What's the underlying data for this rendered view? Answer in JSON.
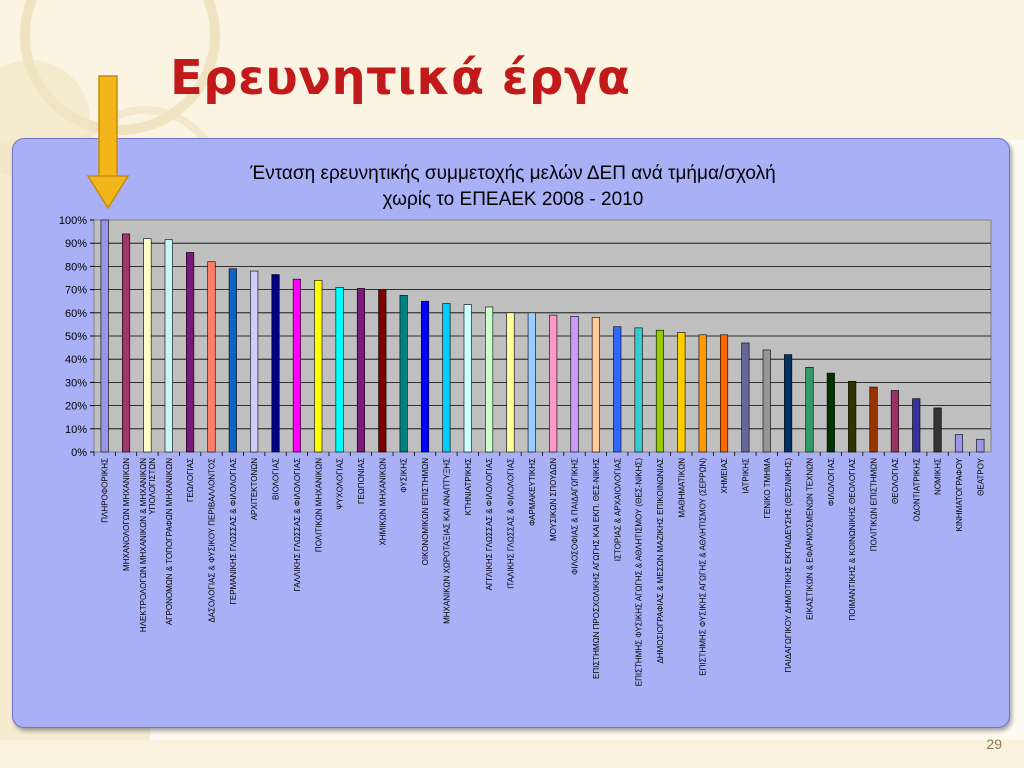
{
  "slide": {
    "title": "Ερευνητικά έργα",
    "page_number": "29",
    "colors": {
      "title": "#c21a1a",
      "panel": "#aab0f6",
      "plot_area": "#c0c0c0",
      "arrow": "#f2b51a"
    }
  },
  "chart_data": {
    "type": "bar",
    "title": "Ένταση ερευνητικής συμμετοχής μελών ΔΕΠ ανά τμήμα/σχολή χωρίς το ΕΠΕΑΕΚ 2008 - 2010",
    "title_lines": [
      "Ένταση ερευνητικής συμμετοχής μελών ΔΕΠ ανά τμήμα/σχολή",
      "χωρίς το ΕΠΕΑΕΚ 2008 - 2010"
    ],
    "xlabel": "",
    "ylabel": "",
    "ylim": [
      0,
      100
    ],
    "y_ticks": [
      "0%",
      "10%",
      "20%",
      "30%",
      "40%",
      "50%",
      "60%",
      "70%",
      "80%",
      "90%",
      "100%"
    ],
    "grid": true,
    "legend": "none",
    "categories": [
      [
        "ΠΛΗΡΟΦΟΡΙΚΗΣ"
      ],
      [
        "ΜΗΧΑΝΟΛΟΓΩΝ ΜΗΧΑΝΙΚΩΝ"
      ],
      [
        "ΗΛΕΚΤΡΟΛΟΓΩΝ ΜΗΧΑΝΙΚΩΝ & ΜΗΧΑΝΙΚΩΝ",
        "ΥΠΟΛΟΓΙΣΤΩΝ"
      ],
      [
        "ΑΓΡΟΝΟΜΩΝ & ΤΟΠΟΓΡΑΦΩΝ ΜΗΧΑΝΙΚΩΝ"
      ],
      [
        "ΓΕΩΛΟΓΙΑΣ"
      ],
      [
        "ΔΑΣΟΛΟΓΙΑΣ & ΦΥΣΙΚΟΥ ΠΕΡΙΒΑΛΛΟΝΤΟΣ"
      ],
      [
        "ΓΕΡΜΑΝΙΚΗΣ ΓΛΩΣΣΑΣ & ΦΙΛΟΛΟΓΙΑΣ"
      ],
      [
        "ΑΡΧΙΤΕΚΤΟΝΩΝ"
      ],
      [
        "ΒΙΟΛΟΓΙΑΣ"
      ],
      [
        "ΓΑΛΛΙΚΗΣ ΓΛΩΣΣΑΣ & ΦΙΛΟΛΟΓΙΑΣ"
      ],
      [
        "ΠΟΛΙΤΙΚΩΝ ΜΗΧΑΝΙΚΩΝ"
      ],
      [
        "ΨΥΧΟΛΟΓΙΑΣ"
      ],
      [
        "ΓΕΩΠΟΝΙΑΣ"
      ],
      [
        "ΧΗΜΙΚΩΝ ΜΗΧΑΝΙΚΩΝ"
      ],
      [
        "ΦΥΣΙΚΗΣ"
      ],
      [
        "ΟΙΚΟΝΟΜΙΚΩΝ ΕΠΙΣΤΗΜΩΝ"
      ],
      [
        "ΜΗΧΑΝΙΚΩΝ ΧΩΡΟΤΑΞΙΑΣ ΚΑΙ ΑΝΑΠΤΥΞΗΣ"
      ],
      [
        "ΚΤΗΝΙΑΤΡΙΚΗΣ"
      ],
      [
        "ΑΓΓΛΙΚΗΣ ΓΛΩΣΣΑΣ & ΦΙΛΟΛΟΓΙΑΣ"
      ],
      [
        "ΙΤΑΛΙΚΗΣ ΓΛΩΣΣΑΣ & ΦΙΛΟΛΟΓΙΑΣ"
      ],
      [
        "ΦΑΡΜΑΚΕΥΤΙΚΗΣ"
      ],
      [
        "ΜΟΥΣΙΚΩΝ ΣΠΟΥΔΩΝ"
      ],
      [
        "ΦΙΛΟΣΟΦΙΑΣ & ΠΑΙΔΑΓΩΓΙΚΗΣ"
      ],
      [
        "ΕΠΙΣΤΗΜΩΝ ΠΡΟΣΧΟΛΙΚΗΣ ΑΓΩΓΗΣ ΚΑΙ ΕΚΠ. ΘΕΣ-ΝΙΚΗΣ"
      ],
      [
        "ΙΣΤΟΡΙΑΣ & ΑΡΧΑΙΟΛΟΓΙΑΣ"
      ],
      [
        "ΕΠΙΣΤΗΜΗΣ ΦΥΣΙΚΗΣ ΑΓΩΓΗΣ & ΑΘΛΗΤΙΣΜΟΥ (ΘΕΣ-ΝΙΚΗΣ)"
      ],
      [
        "ΔΗΜΟΣΙΟΓΡΑΦΙΑΣ & ΜΕΣΩΝ ΜΑΖΙΚΗΣ ΕΠΙΚΟΙΝΩΝΙΑΣ"
      ],
      [
        "ΜΑΘΗΜΑΤΙΚΩΝ"
      ],
      [
        "ΕΠΙΣΤΗΜΗΣ ΦΥΣΙΚΗΣ ΑΓΩΓΗΣ & ΑΘΛΗΤΙΣΜΟΥ (ΣΕΡΡΩΝ)"
      ],
      [
        "ΧΗΜΕΙΑΣ"
      ],
      [
        "ΙΑΤΡΙΚΗΣ"
      ],
      [
        "ΓΕΝΙΚΟ ΤΜΗΜΑ"
      ],
      [
        "ΠΑΙΔΑΓΩΓΙΚΟΥ ΔΗΜΟΤΙΚΗΣ ΕΚΠΑΙΔΕΥΣΗΣ (ΘΕΣ/ΝΙΚΗΣ)"
      ],
      [
        "ΕΙΚΑΣΤΙΚΩΝ & ΕΦΑΡΜΟΣΜΕΝΩΝ ΤΕΧΝΩΝ"
      ],
      [
        "ΦΙΛΟΛΟΓΙΑΣ"
      ],
      [
        "ΠΟΙΜΑΝΤΙΚΗΣ & ΚΟΙΝΩΝΙΚΗΣ ΘΕΟΛΟΓΙΑΣ"
      ],
      [
        "ΠΟΛΙΤΙΚΩΝ ΕΠΙΣΤΗΜΩΝ"
      ],
      [
        "ΘΕΟΛΟΓΙΑΣ"
      ],
      [
        "ΟΔΟΝΤΙΑΤΡΙΚΗΣ"
      ],
      [
        "ΝΟΜΙΚΗΣ"
      ],
      [
        "ΚΙΝΗΜΑΤΟΓΡΑΦΟΥ"
      ],
      [
        "ΘΕΑΤΡΟΥ"
      ]
    ],
    "values": [
      100,
      94,
      92,
      91.5,
      86,
      82,
      79,
      78,
      76.5,
      74.5,
      74,
      71,
      70.5,
      70,
      67.5,
      65,
      64,
      63.5,
      62.5,
      60,
      60,
      59,
      58.5,
      58,
      54,
      53.5,
      52.5,
      51.5,
      50.5,
      50.5,
      47,
      44,
      42,
      36.5,
      34,
      30.5,
      28,
      26.5,
      23,
      19,
      7.5,
      5.5
    ],
    "bar_colors": [
      "#9a96ec",
      "#a0366a",
      "#ffffc8",
      "#c8f4f8",
      "#7a1a7a",
      "#ff7f6a",
      "#0f62c6",
      "#ccccff",
      "#000080",
      "#ff00ff",
      "#ffff00",
      "#00ffff",
      "#7e1a7e",
      "#800000",
      "#008080",
      "#0000ff",
      "#00ccff",
      "#ccffff",
      "#ccffcc",
      "#ffff99",
      "#99ccff",
      "#ff99cc",
      "#cc99ff",
      "#ffcc99",
      "#3366ff",
      "#33cccc",
      "#99cc00",
      "#ffcc00",
      "#ff9900",
      "#ff6600",
      "#666699",
      "#969696",
      "#003366",
      "#339966",
      "#003300",
      "#333300",
      "#993300",
      "#993366",
      "#333399",
      "#333333",
      "#9a96ec",
      "#9a96ec"
    ]
  }
}
